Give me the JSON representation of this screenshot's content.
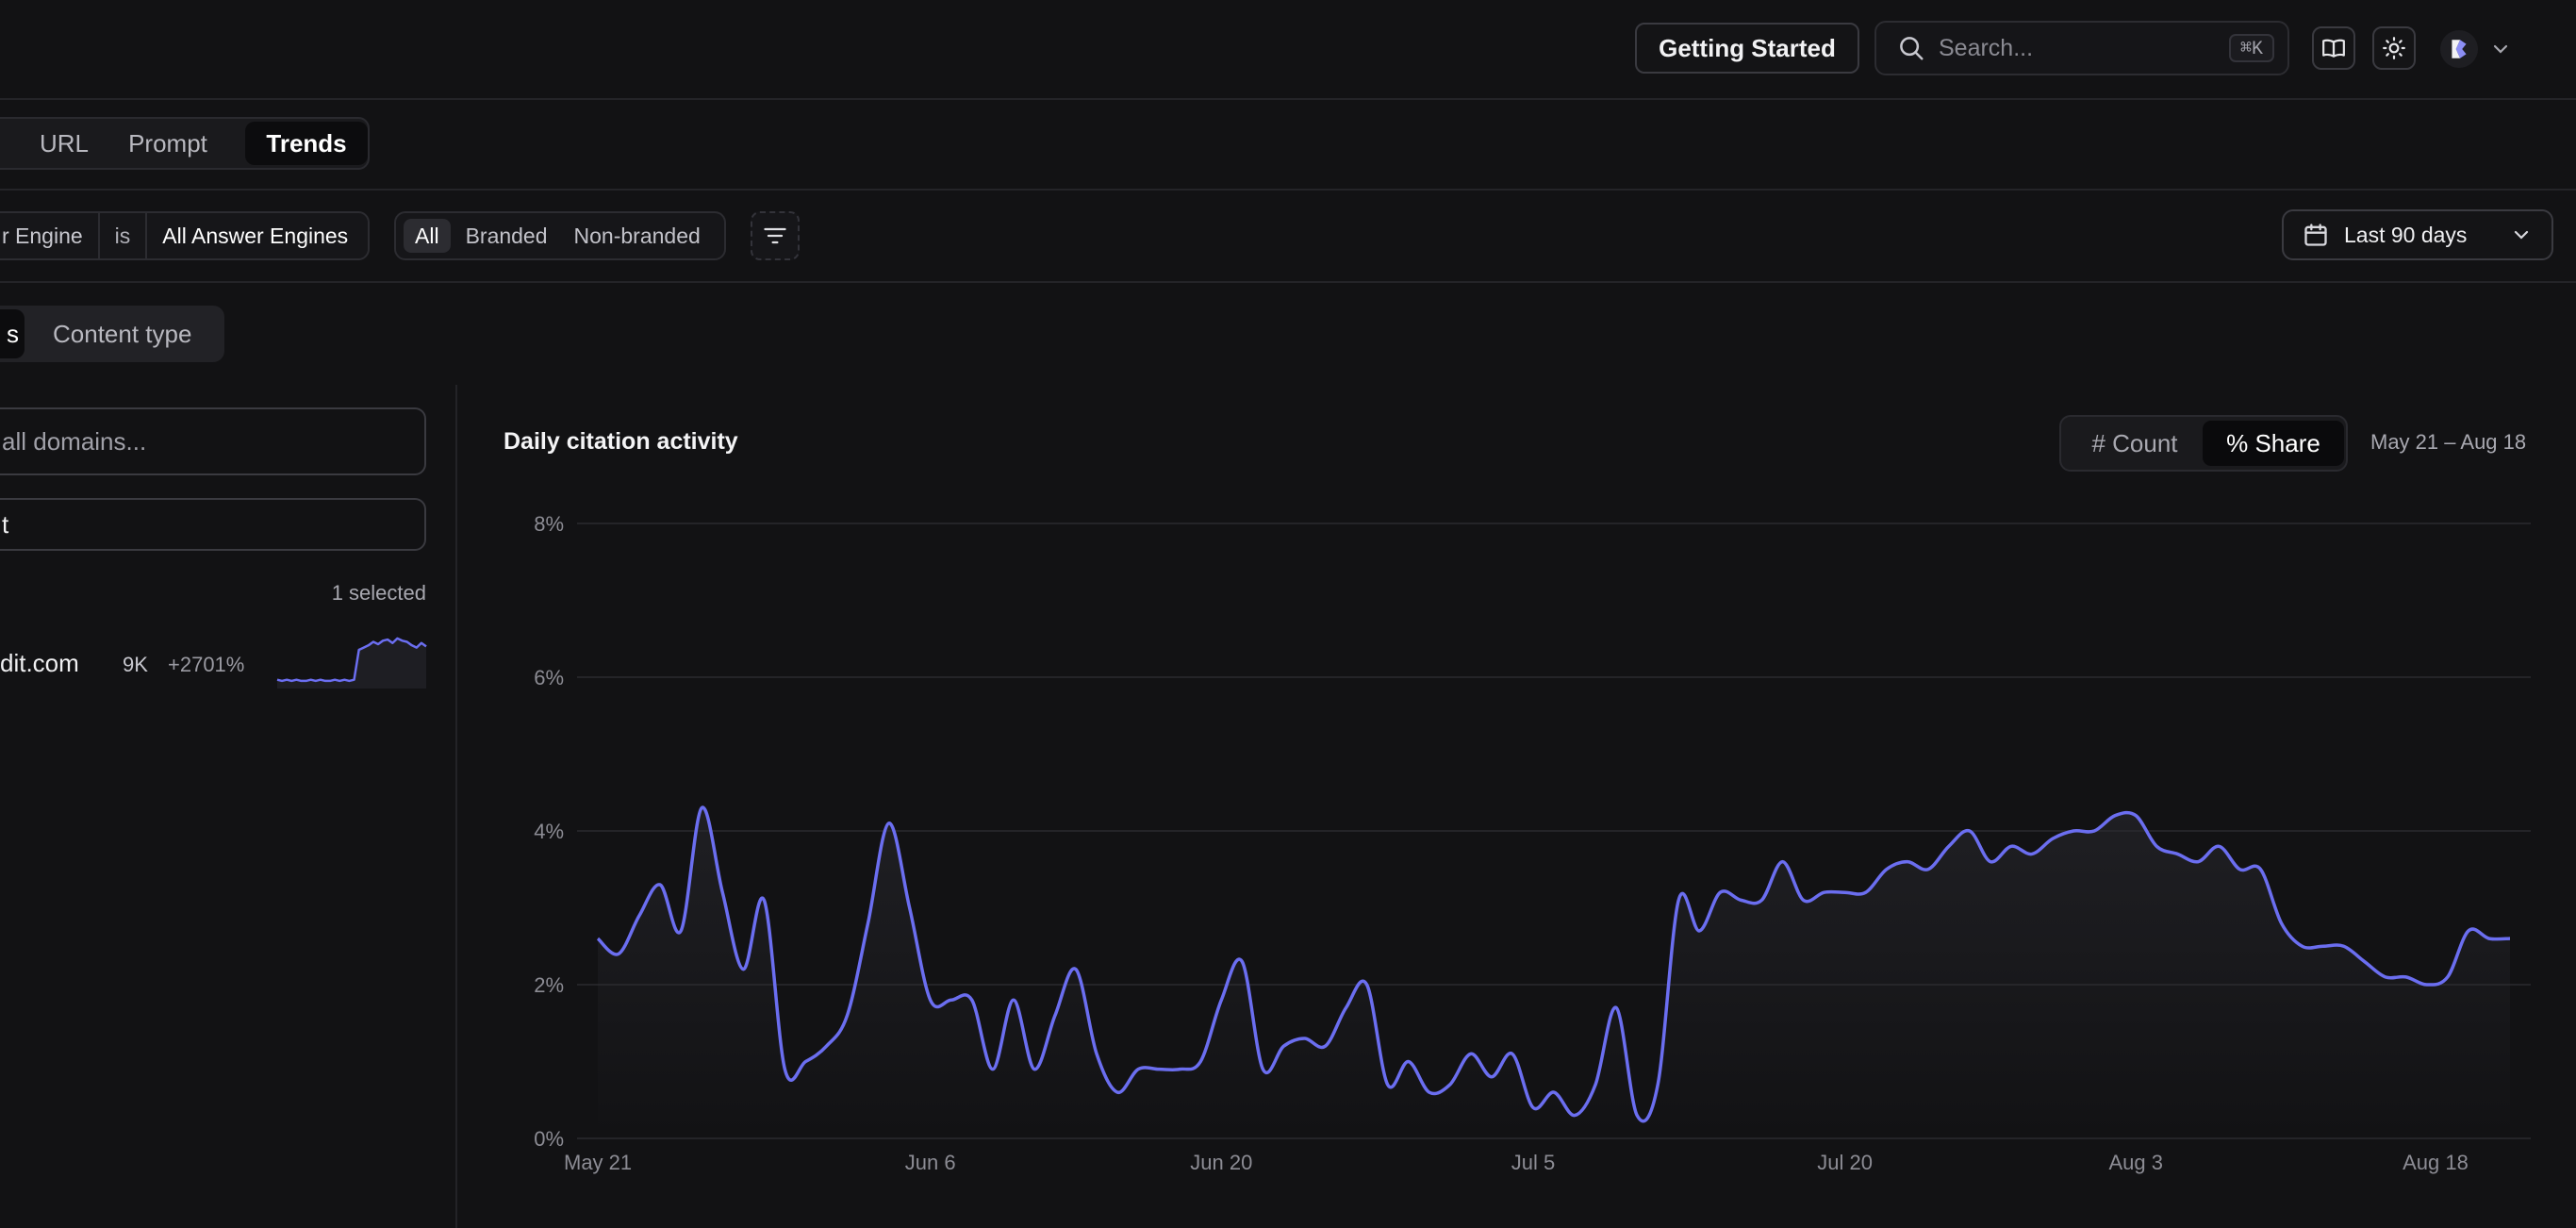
{
  "header": {
    "getting_started_label": "Getting Started",
    "search_placeholder": "Search...",
    "search_shortcut": "⌘K"
  },
  "tabs": [
    {
      "label": "URL"
    },
    {
      "label": "Prompt"
    },
    {
      "label": "Trends",
      "active": true
    }
  ],
  "filters": {
    "engine_field": "r Engine",
    "engine_operator": "is",
    "engine_value": "All Answer Engines",
    "segments": [
      "All",
      "Branded",
      "Non-branded"
    ],
    "active_segment": "All",
    "date_range": "Last 90 days"
  },
  "subtabs": {
    "first_partial": "s",
    "second": "Content type"
  },
  "sidebar": {
    "search_placeholder": "all domains...",
    "filter_value": "t",
    "selected_count": "1 selected",
    "domains": [
      {
        "name": "dit.com",
        "count": "9K",
        "change": "+2701%",
        "spark": [
          0.6,
          0.5,
          0.6,
          0.5,
          0.6,
          0.5,
          0.5,
          0.6,
          0.5,
          0.6,
          0.5,
          0.5,
          0.6,
          0.5,
          0.6,
          0.5,
          0.6,
          3.2,
          3.4,
          3.6,
          3.9,
          3.7,
          4.0,
          4.1,
          3.8,
          4.2,
          4.0,
          3.9,
          3.6,
          3.4,
          3.8,
          3.5
        ]
      }
    ]
  },
  "panel": {
    "title": "Daily citation activity",
    "toggle": [
      "# Count",
      "% Share"
    ],
    "toggle_active": "% Share",
    "date_span": "May 21 – Aug 18"
  },
  "colors": {
    "accent": "#6b6ef0",
    "background": "#121214",
    "grid": "#2a2a2e"
  },
  "chart_data": {
    "type": "area",
    "title": "Daily citation activity",
    "xlabel": "",
    "ylabel": "",
    "ylim": [
      0,
      8
    ],
    "y_ticks": [
      "0%",
      "2%",
      "4%",
      "6%",
      "8%"
    ],
    "x_ticks": [
      "May 21",
      "Jun 6",
      "Jun 20",
      "Jul 5",
      "Jul 20",
      "Aug 3",
      "Aug 18"
    ],
    "x_start": "2024-05-21",
    "grid": true,
    "series": [
      {
        "values": [
          2.6,
          2.4,
          2.9,
          3.3,
          2.7,
          4.3,
          3.2,
          2.2,
          3.1,
          0.9,
          1.0,
          1.2,
          1.6,
          2.8,
          4.1,
          3.0,
          1.8,
          1.8,
          1.8,
          0.9,
          1.8,
          0.9,
          1.6,
          2.2,
          1.1,
          0.6,
          0.9,
          0.9,
          0.9,
          1.0,
          1.8,
          2.3,
          0.9,
          1.2,
          1.3,
          1.2,
          1.7,
          2.0,
          0.7,
          1.0,
          0.6,
          0.7,
          1.1,
          0.8,
          1.1,
          0.4,
          0.6,
          0.3,
          0.7,
          1.7,
          0.3,
          0.7,
          3.1,
          2.7,
          3.2,
          3.1,
          3.1,
          3.6,
          3.1,
          3.2,
          3.2,
          3.2,
          3.5,
          3.6,
          3.5,
          3.8,
          4.0,
          3.6,
          3.8,
          3.7,
          3.9,
          4.0,
          4.0,
          4.2,
          4.2,
          3.8,
          3.7,
          3.6,
          3.8,
          3.5,
          3.5,
          2.8,
          2.5,
          2.5,
          2.5,
          2.3,
          2.1,
          2.1,
          2.0,
          2.1,
          2.7,
          2.6,
          2.6
        ]
      }
    ]
  }
}
